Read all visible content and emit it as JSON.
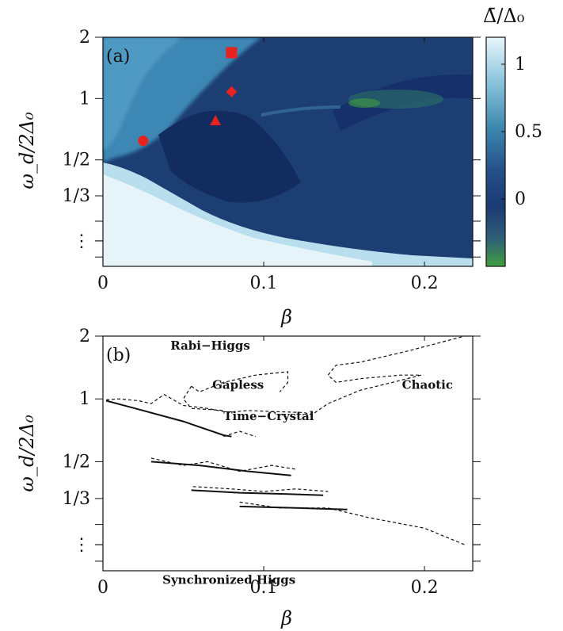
{
  "chart_data": [
    {
      "panel": "(a)",
      "type": "heatmap",
      "xlabel": "β",
      "ylabel": "ω_d/2Δ₀",
      "xlim": [
        0,
        0.23
      ],
      "x_ticks": [
        "0",
        "0.1",
        "0.2"
      ],
      "y_ticks": [
        {
          "label": "2",
          "value": 2
        },
        {
          "label": "1",
          "value": 1
        },
        {
          "label": "1/2",
          "value": 0.5
        },
        {
          "label": "1/3",
          "value": 0.333
        },
        {
          "label": "⋮",
          "value": 0.2
        }
      ],
      "extra_y_ticks": [
        0.25,
        0.2,
        0.1667
      ],
      "colorbar": {
        "title": "Δ̄/Δ₀",
        "ticks": [
          "1",
          "0.5",
          "0"
        ],
        "tick_values": [
          1,
          0.5,
          0
        ],
        "range": [
          -0.5,
          1.2
        ],
        "colors": [
          "#3f9f3f",
          "#2f5f78",
          "#1b3a74",
          "#25508a",
          "#3b86ad",
          "#88c3dc",
          "#e8f5fa"
        ]
      },
      "markers": [
        {
          "shape": "circle",
          "x": 0.025,
          "y": 0.62,
          "color": "#e8221e"
        },
        {
          "shape": "triangle",
          "x": 0.07,
          "y": 0.78,
          "color": "#e8221e"
        },
        {
          "shape": "diamond",
          "x": 0.08,
          "y": 1.08,
          "color": "#e8221e"
        },
        {
          "shape": "square",
          "x": 0.08,
          "y": 1.68,
          "color": "#e8221e"
        }
      ]
    },
    {
      "panel": "(b)",
      "type": "line",
      "xlabel": "β",
      "ylabel": "ω_d/2Δ₀",
      "xlim": [
        0,
        0.23
      ],
      "x_ticks": [
        "0",
        "0.1",
        "0.2"
      ],
      "y_ticks": [
        {
          "label": "2",
          "value": 2
        },
        {
          "label": "1",
          "value": 1
        },
        {
          "label": "1/2",
          "value": 0.5
        },
        {
          "label": "1/3",
          "value": 0.333
        },
        {
          "label": "⋮",
          "value": 0.2
        }
      ],
      "extra_y_ticks": [
        0.25,
        0.2,
        0.1667
      ],
      "region_labels": [
        {
          "text": "Rabi−Higgs",
          "x": 0.042,
          "y": 1.72
        },
        {
          "text": "Gapless",
          "x": 0.068,
          "y": 1.12
        },
        {
          "text": "Chaotic",
          "x": 0.186,
          "y": 1.12
        },
        {
          "text": "Time−Crystal",
          "x": 0.075,
          "y": 0.79
        },
        {
          "text": "Synchronized Higgs",
          "x": 0.037,
          "y": 0.13
        }
      ],
      "solid_boundaries": [
        [
          [
            0.002,
            0.98
          ],
          [
            0.02,
            0.9
          ],
          [
            0.05,
            0.78
          ],
          [
            0.075,
            0.67
          ],
          [
            0.08,
            0.66
          ]
        ],
        [
          [
            0.03,
            0.5
          ],
          [
            0.06,
            0.48
          ],
          [
            0.09,
            0.45
          ],
          [
            0.117,
            0.43
          ]
        ],
        [
          [
            0.055,
            0.365
          ],
          [
            0.085,
            0.355
          ],
          [
            0.115,
            0.35
          ],
          [
            0.137,
            0.345
          ]
        ],
        [
          [
            0.085,
            0.305
          ],
          [
            0.12,
            0.3
          ],
          [
            0.152,
            0.295
          ]
        ]
      ],
      "dashed_boundaries": [
        [
          [
            0.002,
            0.99
          ],
          [
            0.01,
            1.0
          ],
          [
            0.022,
            0.98
          ],
          [
            0.03,
            0.95
          ],
          [
            0.038,
            1.05
          ],
          [
            0.05,
            0.93
          ],
          [
            0.065,
            0.9
          ],
          [
            0.078,
            0.86
          ],
          [
            0.09,
            0.88
          ],
          [
            0.105,
            0.87
          ],
          [
            0.125,
            0.86
          ],
          [
            0.13,
            0.84
          ],
          [
            0.14,
            0.95
          ],
          [
            0.16,
            1.1
          ],
          [
            0.18,
            1.2
          ],
          [
            0.198,
            1.3
          ],
          [
            0.185,
            1.3
          ],
          [
            0.16,
            1.25
          ],
          [
            0.145,
            1.2
          ],
          [
            0.14,
            1.3
          ],
          [
            0.145,
            1.45
          ],
          [
            0.16,
            1.5
          ],
          [
            0.19,
            1.7
          ],
          [
            0.225,
            2.0
          ]
        ],
        [
          [
            0.055,
            1.15
          ],
          [
            0.05,
            1.0
          ],
          [
            0.055,
            0.9
          ],
          [
            0.075,
            0.88
          ]
        ],
        [
          [
            0.055,
            1.15
          ],
          [
            0.06,
            1.08
          ],
          [
            0.075,
            1.2
          ],
          [
            0.095,
            1.3
          ],
          [
            0.115,
            1.35
          ],
          [
            0.115,
            1.2
          ],
          [
            0.11,
            1.08
          ]
        ],
        [
          [
            0.075,
            0.66
          ],
          [
            0.085,
            0.7
          ],
          [
            0.095,
            0.66
          ]
        ],
        [
          [
            0.03,
            0.52
          ],
          [
            0.05,
            0.48
          ],
          [
            0.065,
            0.5
          ],
          [
            0.085,
            0.45
          ],
          [
            0.105,
            0.48
          ],
          [
            0.12,
            0.46
          ]
        ],
        [
          [
            0.056,
            0.38
          ],
          [
            0.08,
            0.37
          ],
          [
            0.1,
            0.36
          ],
          [
            0.12,
            0.37
          ],
          [
            0.14,
            0.36
          ]
        ],
        [
          [
            0.085,
            0.32
          ],
          [
            0.11,
            0.3
          ],
          [
            0.14,
            0.3
          ],
          [
            0.165,
            0.27
          ],
          [
            0.2,
            0.24
          ],
          [
            0.225,
            0.2
          ]
        ]
      ]
    }
  ]
}
